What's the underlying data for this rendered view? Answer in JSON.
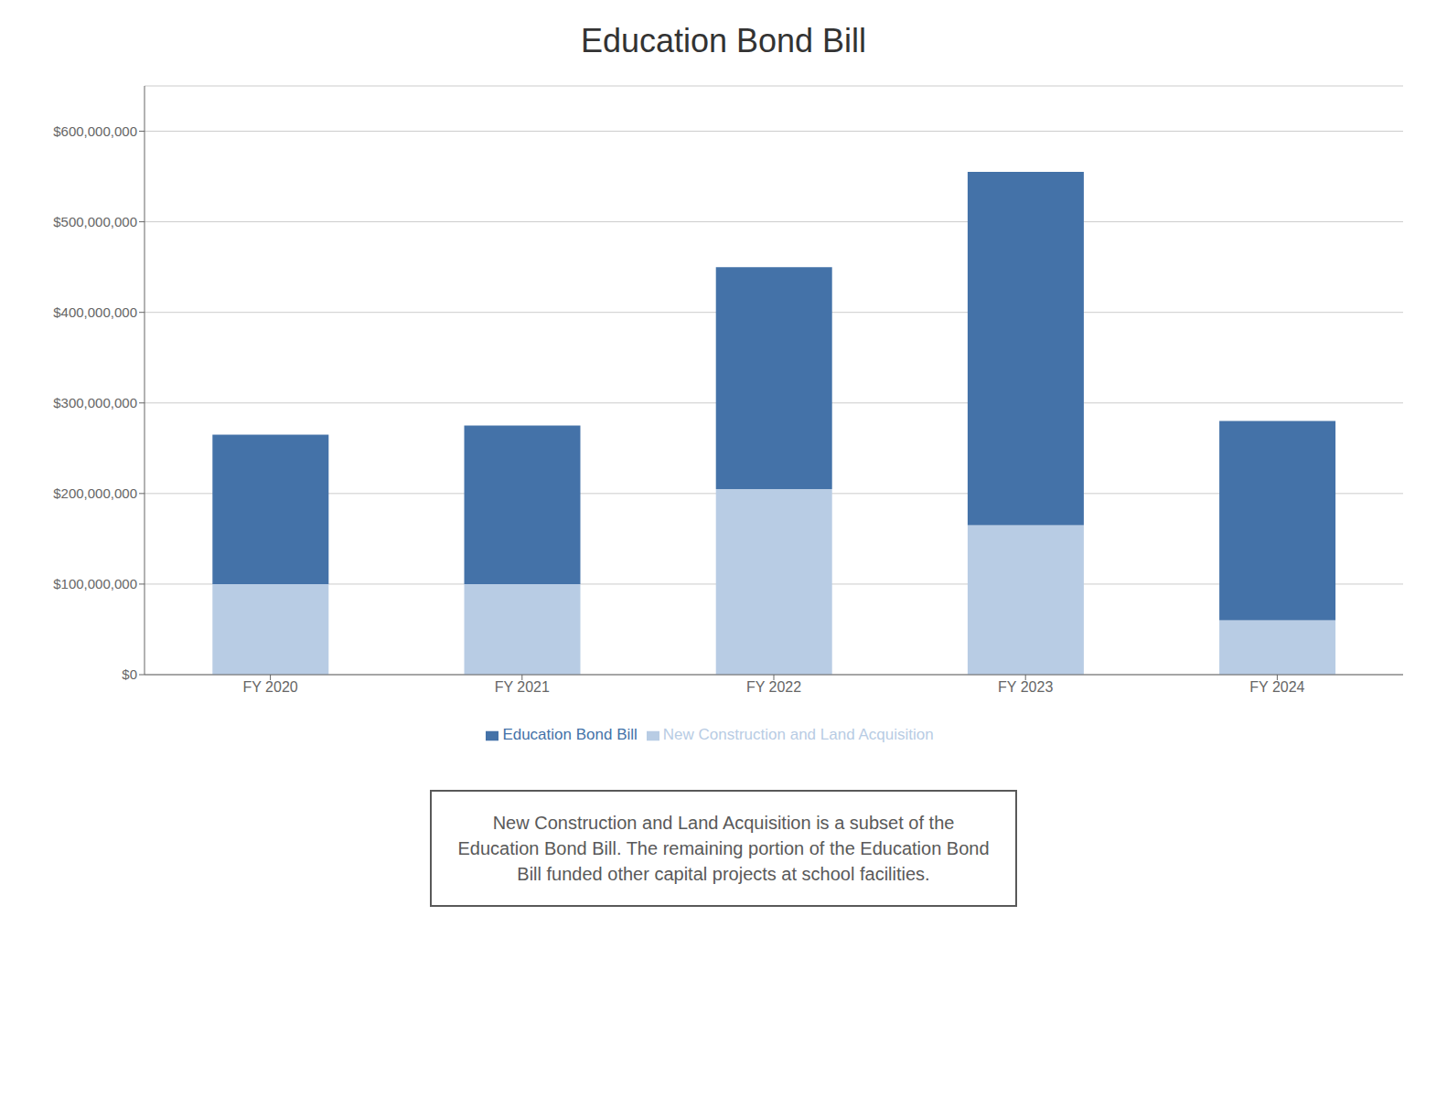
{
  "chart_data": {
    "type": "bar",
    "title": "Education Bond Bill",
    "categories": [
      "FY 2020",
      "FY 2021",
      "FY 2022",
      "FY 2023",
      "FY 2024"
    ],
    "series": [
      {
        "name": "New Construction and Land Acquisition",
        "color": "#b8cce4",
        "values": [
          100000000,
          100000000,
          205000000,
          165000000,
          60000000
        ]
      },
      {
        "name": "Education Bond Bill",
        "color": "#4472a8",
        "values": [
          165000000,
          175000000,
          245000000,
          390000000,
          220000000
        ]
      }
    ],
    "stacked": true,
    "ylim": [
      0,
      650000000
    ],
    "yticks": [
      {
        "value": 0,
        "label": "$0"
      },
      {
        "value": 100000000,
        "label": "$100,000,000"
      },
      {
        "value": 200000000,
        "label": "$200,000,000"
      },
      {
        "value": 300000000,
        "label": "$300,000,000"
      },
      {
        "value": 400000000,
        "label": "$400,000,000"
      },
      {
        "value": 500000000,
        "label": "$500,000,000"
      },
      {
        "value": 600000000,
        "label": "$600,000,000"
      }
    ],
    "grid": true,
    "legend": "bottom",
    "annotations": [
      "New Construction and Land Acquisition is a subset of the\nEducation Bond Bill. The remaining portion of the Education Bond\nBill funded other capital projects at school facilities."
    ]
  }
}
